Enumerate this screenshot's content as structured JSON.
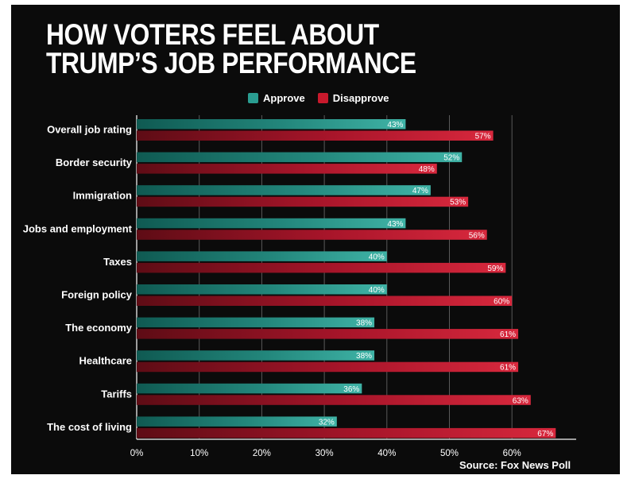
{
  "title_lines": [
    "HOW VOTERS FEEL ABOUT",
    "TRUMP’S JOB PERFORMANCE"
  ],
  "source": "Source: Fox News Poll",
  "colors": {
    "approve": "#2a9d91",
    "disapprove": "#c8192c",
    "background": "#0b0b0b"
  },
  "chart_data": {
    "type": "bar",
    "orientation": "horizontal",
    "title": "HOW VOTERS FEEL ABOUT TRUMP’S JOB PERFORMANCE",
    "categories": [
      "Overall job rating",
      "Border security",
      "Immigration",
      "Jobs and employment",
      "Taxes",
      "Foreign policy",
      "The economy",
      "Healthcare",
      "Tariffs",
      "The cost of living"
    ],
    "series": [
      {
        "name": "Approve",
        "values": [
          43,
          52,
          47,
          43,
          40,
          40,
          38,
          38,
          36,
          32
        ]
      },
      {
        "name": "Disapprove",
        "values": [
          57,
          48,
          53,
          56,
          59,
          60,
          61,
          61,
          63,
          67
        ]
      }
    ],
    "value_suffix": "%",
    "xlim": [
      0,
      70
    ],
    "xticks": [
      "0%",
      "10%",
      "20%",
      "30%",
      "40%",
      "50%",
      "60%"
    ],
    "grid": true,
    "legend": "top"
  }
}
